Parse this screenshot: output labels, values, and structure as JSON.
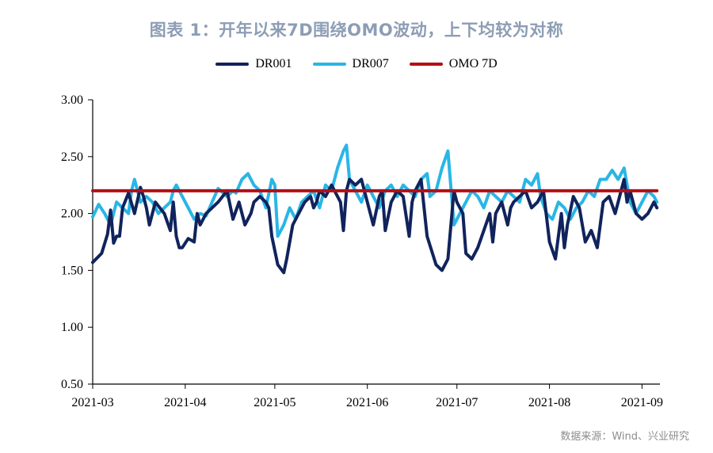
{
  "chart_data": {
    "type": "line",
    "title": "图表 1：开年以来7D围绕OMO波动，上下均较为对称",
    "source": "数据来源：Wind、兴业研究",
    "xlabel": "",
    "ylabel": "",
    "ylim": [
      0.5,
      3.0
    ],
    "yticks": [
      0.5,
      1.0,
      1.5,
      2.0,
      2.5,
      3.0
    ],
    "ytick_labels": [
      "0.50",
      "1.00",
      "1.50",
      "2.00",
      "2.50",
      "3.00"
    ],
    "xlim": [
      0,
      190
    ],
    "xticks": [
      0,
      31,
      61,
      92,
      122,
      153,
      184
    ],
    "xtick_labels": [
      "2021-03",
      "2021-04",
      "2021-05",
      "2021-06",
      "2021-07",
      "2021-08",
      "2021-09"
    ],
    "grid": false,
    "legend_position": "top-center",
    "series": [
      {
        "name": "DR001",
        "color": "#10235c",
        "x": [
          0,
          3,
          5,
          6,
          7,
          8,
          9,
          10,
          12,
          14,
          16,
          17,
          18,
          19,
          21,
          24,
          26,
          27,
          28,
          29,
          30,
          32,
          34,
          35,
          36,
          38,
          42,
          45,
          47,
          49,
          51,
          53,
          54,
          56,
          58,
          59,
          60,
          62,
          64,
          65,
          67,
          69,
          71,
          73,
          74,
          75,
          76,
          78,
          80,
          83,
          84,
          85,
          86,
          88,
          90,
          92,
          94,
          96,
          97,
          98,
          100,
          102,
          104,
          106,
          107,
          108,
          110,
          112,
          115,
          117,
          119,
          121,
          122,
          124,
          125,
          127,
          129,
          131,
          133,
          134,
          135,
          137,
          139,
          140,
          141,
          143,
          145,
          147,
          149,
          150,
          151,
          153,
          155,
          157,
          158,
          159,
          161,
          163,
          165,
          167,
          169,
          171,
          173,
          175,
          177,
          178,
          179,
          180,
          182,
          184,
          186,
          188,
          189
        ],
        "values": [
          1.57,
          1.65,
          1.82,
          2.03,
          1.74,
          1.8,
          1.8,
          2.05,
          2.18,
          2.0,
          2.23,
          2.15,
          2.05,
          1.9,
          2.1,
          2.0,
          1.85,
          2.1,
          1.8,
          1.7,
          1.7,
          1.78,
          1.75,
          2.0,
          1.9,
          2.0,
          2.1,
          2.2,
          1.95,
          2.1,
          1.9,
          2.0,
          2.1,
          2.15,
          2.1,
          2.05,
          1.8,
          1.55,
          1.48,
          1.6,
          1.9,
          2.0,
          2.1,
          2.15,
          2.05,
          2.1,
          2.2,
          2.15,
          2.25,
          2.1,
          1.85,
          2.2,
          2.3,
          2.25,
          2.3,
          2.1,
          1.9,
          2.15,
          2.2,
          1.85,
          2.1,
          2.2,
          2.15,
          1.8,
          2.1,
          2.2,
          2.3,
          1.8,
          1.55,
          1.5,
          1.6,
          2.2,
          2.1,
          2.0,
          1.65,
          1.6,
          1.7,
          1.85,
          2.0,
          1.75,
          2.0,
          2.1,
          1.9,
          2.05,
          2.1,
          2.15,
          2.2,
          2.05,
          2.1,
          2.15,
          2.2,
          1.75,
          1.6,
          2.0,
          1.7,
          1.9,
          2.15,
          2.05,
          1.75,
          1.85,
          1.7,
          2.1,
          2.15,
          2.0,
          2.2,
          2.3,
          2.1,
          2.2,
          2.0,
          1.95,
          2.0,
          2.1,
          2.05
        ]
      },
      {
        "name": "DR007",
        "color": "#29b6e6",
        "x": [
          0,
          2,
          4,
          6,
          8,
          10,
          12,
          13,
          14,
          16,
          18,
          20,
          22,
          24,
          26,
          27,
          28,
          30,
          32,
          34,
          36,
          38,
          40,
          42,
          45,
          47,
          48,
          50,
          52,
          54,
          56,
          58,
          60,
          61,
          62,
          64,
          66,
          68,
          70,
          72,
          74,
          76,
          78,
          80,
          82,
          84,
          85,
          86,
          88,
          90,
          92,
          94,
          96,
          98,
          100,
          102,
          104,
          106,
          108,
          110,
          112,
          113,
          115,
          117,
          119,
          121,
          123,
          125,
          127,
          129,
          131,
          133,
          135,
          137,
          139,
          141,
          143,
          145,
          147,
          149,
          150,
          152,
          154,
          156,
          158,
          160,
          162,
          164,
          166,
          168,
          170,
          172,
          174,
          176,
          178,
          180,
          181,
          182,
          184,
          186,
          188,
          189
        ],
        "values": [
          1.97,
          2.08,
          2.0,
          1.9,
          2.1,
          2.05,
          2.0,
          2.2,
          2.3,
          2.1,
          2.15,
          2.1,
          2.0,
          2.05,
          2.1,
          2.2,
          2.25,
          2.15,
          2.05,
          1.95,
          2.0,
          1.98,
          2.1,
          2.22,
          2.15,
          2.2,
          2.18,
          2.3,
          2.35,
          2.25,
          2.2,
          2.05,
          2.3,
          2.25,
          1.8,
          1.9,
          2.05,
          1.95,
          2.1,
          2.15,
          2.2,
          2.05,
          2.25,
          2.2,
          2.4,
          2.55,
          2.6,
          2.3,
          2.2,
          2.1,
          2.25,
          2.15,
          2.05,
          2.2,
          2.25,
          2.15,
          2.25,
          2.2,
          2.15,
          2.3,
          2.35,
          2.15,
          2.2,
          2.4,
          2.55,
          1.9,
          2.0,
          2.1,
          2.2,
          2.15,
          2.05,
          2.2,
          2.15,
          2.1,
          2.2,
          2.15,
          2.1,
          2.3,
          2.25,
          2.35,
          2.15,
          2.0,
          1.95,
          2.1,
          2.05,
          1.95,
          2.05,
          2.1,
          2.2,
          2.15,
          2.3,
          2.3,
          2.38,
          2.3,
          2.4,
          2.1,
          2.05,
          2.0,
          2.1,
          2.2,
          2.15,
          2.1
        ]
      },
      {
        "name": "OMO 7D",
        "color": "#b30f16",
        "x": [
          0,
          189
        ],
        "values": [
          2.2,
          2.2
        ]
      }
    ]
  }
}
